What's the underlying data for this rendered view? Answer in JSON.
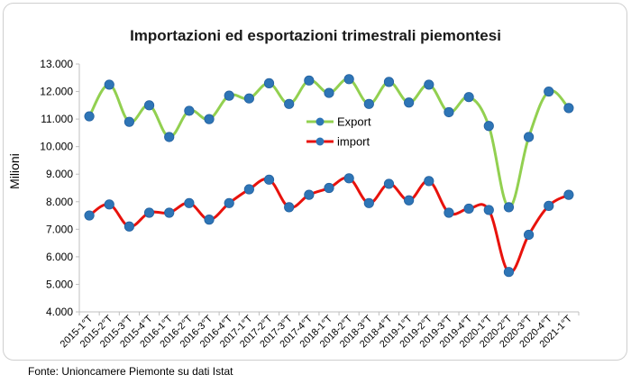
{
  "source_note": "Fonte: Unioncamere Piemonte su dati Istat",
  "chart_data": {
    "type": "line",
    "title": "Importazioni ed esportazioni trimestrali piemontesi",
    "ylabel": "Milioni",
    "xlabel": "",
    "ylim": [
      4000,
      13000
    ],
    "yticks": [
      "4.000",
      "5.000",
      "6.000",
      "7.000",
      "8.000",
      "9.000",
      "10.000",
      "11.000",
      "12.000",
      "13.000"
    ],
    "ytick_values": [
      4000,
      5000,
      6000,
      7000,
      8000,
      9000,
      10000,
      11000,
      12000,
      13000
    ],
    "grid": false,
    "legend_placement": "center",
    "categories": [
      "2015-1°T",
      "2015-2°T",
      "2015-3°T",
      "2015-4°T",
      "2016-1°T",
      "2016-2°T",
      "2016-3°T",
      "2016-4°T",
      "2017-1°T",
      "2017-2°T",
      "2017-3°T",
      "2017-4°T",
      "2018-1°T",
      "2018-2°T",
      "2018-3°T",
      "2018-4°T",
      "2019-1°T",
      "2019-2°T",
      "2019-3°T",
      "2019-4°T",
      "2020-1°T",
      "2020-2°T",
      "2020-3°T",
      "2020-4°T",
      "2021-1°T"
    ],
    "series": [
      {
        "name": "Export",
        "line_color": "#92d050",
        "marker_color": "#2e75b6",
        "values": [
          11100,
          12250,
          10900,
          11500,
          10350,
          11300,
          11000,
          11850,
          11750,
          12300,
          11550,
          12400,
          11950,
          12450,
          11550,
          12350,
          11600,
          12250,
          11250,
          11800,
          10750,
          7800,
          10350,
          12000,
          11400
        ]
      },
      {
        "name": "import",
        "line_color": "#e8120c",
        "marker_color": "#2e75b6",
        "values": [
          7500,
          7900,
          7100,
          7600,
          7600,
          7950,
          7350,
          7950,
          8450,
          8800,
          7800,
          8250,
          8500,
          8850,
          7950,
          8650,
          8050,
          8750,
          7600,
          7750,
          7700,
          5450,
          6800,
          7850,
          8250
        ]
      }
    ]
  }
}
